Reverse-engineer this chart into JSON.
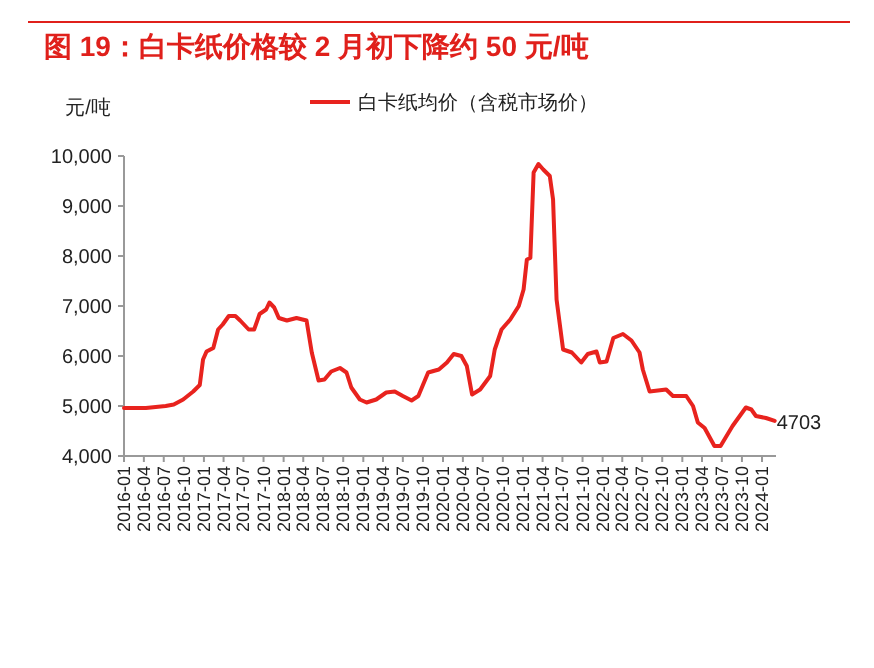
{
  "chart_data": {
    "type": "line",
    "title": "图 19：白卡纸价格较 2 月初下降约 50 元/吨",
    "ylabel": "元/吨",
    "legend": "top",
    "grid": false,
    "line_style": "solid",
    "marker": "none",
    "x": [
      "2016-01-01",
      "2016-04-10",
      "2016-07-10",
      "2016-08-16",
      "2016-09-28",
      "2016-11-13",
      "2016-12-13",
      "2016-12-28",
      "2017-01-13",
      "2017-02-13",
      "2017-03-07",
      "2017-03-28",
      "2017-04-25",
      "2017-05-25",
      "2017-06-16",
      "2017-07-25",
      "2017-08-19",
      "2017-09-13",
      "2017-10-13",
      "2017-10-28",
      "2017-11-19",
      "2017-12-10",
      "2018-01-16",
      "2018-03-01",
      "2018-04-16",
      "2018-05-10",
      "2018-06-10",
      "2018-07-07",
      "2018-08-07",
      "2018-09-16",
      "2018-10-16",
      "2018-11-07",
      "2018-12-16",
      "2019-01-16",
      "2019-03-01",
      "2019-04-16",
      "2019-05-25",
      "2019-07-01",
      "2019-08-10",
      "2019-09-10",
      "2019-10-01",
      "2019-10-25",
      "2019-12-13",
      "2020-01-19",
      "2020-02-19",
      "2020-03-25",
      "2020-04-19",
      "2020-05-13",
      "2020-06-19",
      "2020-08-04",
      "2020-08-25",
      "2020-09-25",
      "2020-11-04",
      "2020-12-13",
      "2021-01-04",
      "2021-01-19",
      "2021-02-04",
      "2021-02-19",
      "2021-03-13",
      "2021-04-04",
      "2021-05-04",
      "2021-05-19",
      "2021-06-04",
      "2021-07-04",
      "2021-08-13",
      "2021-09-25",
      "2021-10-25",
      "2021-12-04",
      "2021-12-19",
      "2022-01-19",
      "2022-02-19",
      "2022-04-04",
      "2022-05-13",
      "2022-06-19",
      "2022-07-04",
      "2022-08-04",
      "2022-10-19",
      "2022-11-19",
      "2023-01-19",
      "2023-02-19",
      "2023-03-13",
      "2023-04-13",
      "2023-05-28",
      "2023-06-25",
      "2023-08-19",
      "2023-10-19",
      "2023-11-13",
      "2023-12-04",
      "2024-01-19",
      "2024-02-28"
    ],
    "series": [
      {
        "name": "白卡纸均价（含税市场价）",
        "color": "#e8231e",
        "values": [
          4960,
          4960,
          5000,
          5030,
          5130,
          5290,
          5420,
          5930,
          6090,
          6160,
          6530,
          6630,
          6800,
          6800,
          6710,
          6530,
          6530,
          6840,
          6930,
          7070,
          6970,
          6760,
          6710,
          6760,
          6710,
          6070,
          5510,
          5530,
          5690,
          5760,
          5670,
          5370,
          5130,
          5070,
          5130,
          5270,
          5290,
          5200,
          5110,
          5200,
          5420,
          5670,
          5730,
          5870,
          6040,
          6000,
          5800,
          5230,
          5330,
          5600,
          6130,
          6530,
          6730,
          7000,
          7330,
          7930,
          7960,
          9670,
          9840,
          9730,
          9600,
          9130,
          7130,
          6130,
          6070,
          5870,
          6040,
          6090,
          5870,
          5890,
          6360,
          6440,
          6310,
          6070,
          5730,
          5290,
          5330,
          5200,
          5200,
          5000,
          4670,
          4560,
          4200,
          4200,
          4600,
          4970,
          4930,
          4800,
          4760,
          4703
        ]
      }
    ],
    "xlim": [
      "2016-01-01",
      "2024-03-05"
    ],
    "xticks": [
      "2016-01",
      "2016-04",
      "2016-07",
      "2016-10",
      "2017-01",
      "2017-04",
      "2017-07",
      "2017-10",
      "2018-01",
      "2018-04",
      "2018-07",
      "2018-10",
      "2019-01",
      "2019-04",
      "2019-07",
      "2019-10",
      "2020-01",
      "2020-04",
      "2020-07",
      "2020-10",
      "2021-01",
      "2021-04",
      "2021-07",
      "2021-10",
      "2022-01",
      "2022-04",
      "2022-07",
      "2022-10",
      "2023-01",
      "2023-04",
      "2023-07",
      "2023-10",
      "2024-01"
    ],
    "ylim": [
      4000,
      10000
    ],
    "yticks": [
      {
        "value": 4000,
        "label": "4,000"
      },
      {
        "value": 5000,
        "label": "5,000"
      },
      {
        "value": 6000,
        "label": "6,000"
      },
      {
        "value": 7000,
        "label": "7,000"
      },
      {
        "value": 8000,
        "label": "8,000"
      },
      {
        "value": 9000,
        "label": "9,000"
      },
      {
        "value": 10000,
        "label": "10,000"
      }
    ],
    "annotations": [
      {
        "text": "4703",
        "x": "2024-02-28",
        "y": 4703
      }
    ]
  }
}
